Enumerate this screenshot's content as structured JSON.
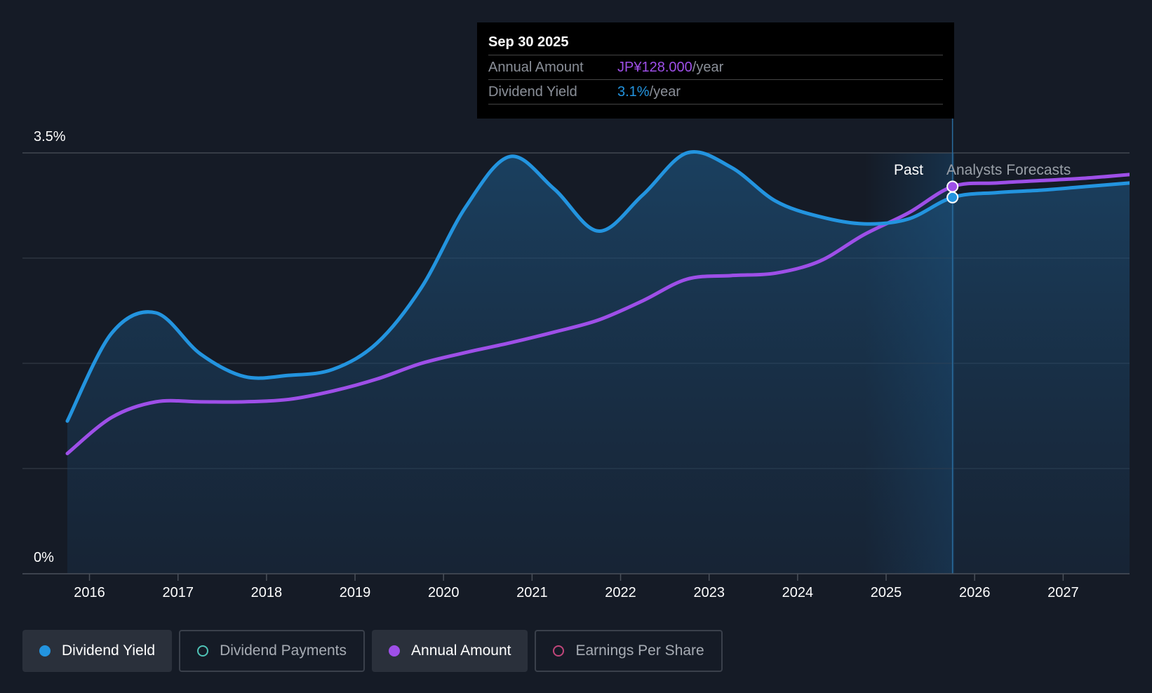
{
  "chart_data": {
    "type": "line",
    "x_axis": {
      "tick_labels": [
        "2016",
        "2017",
        "2018",
        "2019",
        "2020",
        "2021",
        "2022",
        "2023",
        "2024",
        "2025",
        "2026",
        "2027"
      ],
      "range": [
        2015.75,
        2027.75
      ]
    },
    "y_axis": {
      "tick_labels": [
        "0%",
        "3.5%"
      ],
      "range": [
        0,
        3.5
      ],
      "unit": "%"
    },
    "grid": true,
    "region_labels": {
      "past": "Past",
      "forecast": "Analysts Forecasts"
    },
    "series": [
      {
        "name": "Dividend Yield",
        "color": "#2394df",
        "area": true,
        "points": [
          [
            2015.75,
            1.27
          ],
          [
            2016.25,
            2.0
          ],
          [
            2016.75,
            2.17
          ],
          [
            2017.25,
            1.83
          ],
          [
            2017.75,
            1.64
          ],
          [
            2018.25,
            1.65
          ],
          [
            2018.75,
            1.7
          ],
          [
            2019.25,
            1.92
          ],
          [
            2019.75,
            2.38
          ],
          [
            2020.25,
            3.05
          ],
          [
            2020.75,
            3.47
          ],
          [
            2021.25,
            3.2
          ],
          [
            2021.75,
            2.85
          ],
          [
            2022.25,
            3.15
          ],
          [
            2022.75,
            3.5
          ],
          [
            2023.25,
            3.38
          ],
          [
            2023.75,
            3.1
          ],
          [
            2024.25,
            2.97
          ],
          [
            2024.75,
            2.91
          ],
          [
            2025.25,
            2.95
          ],
          [
            2025.75,
            3.13
          ],
          [
            2026.25,
            3.17
          ],
          [
            2026.75,
            3.19
          ],
          [
            2027.25,
            3.22
          ],
          [
            2027.75,
            3.25
          ]
        ]
      },
      {
        "name": "Annual Amount",
        "color": "#9e4fe8",
        "area": false,
        "points": [
          [
            2015.75,
            1.0
          ],
          [
            2016.25,
            1.3
          ],
          [
            2016.75,
            1.43
          ],
          [
            2017.25,
            1.43
          ],
          [
            2017.75,
            1.43
          ],
          [
            2018.25,
            1.45
          ],
          [
            2018.75,
            1.52
          ],
          [
            2019.25,
            1.62
          ],
          [
            2019.75,
            1.75
          ],
          [
            2020.25,
            1.84
          ],
          [
            2020.75,
            1.92
          ],
          [
            2021.25,
            2.01
          ],
          [
            2021.75,
            2.11
          ],
          [
            2022.25,
            2.27
          ],
          [
            2022.75,
            2.45
          ],
          [
            2023.25,
            2.48
          ],
          [
            2023.75,
            2.5
          ],
          [
            2024.25,
            2.6
          ],
          [
            2024.75,
            2.82
          ],
          [
            2025.25,
            3.0
          ],
          [
            2025.75,
            3.22
          ],
          [
            2026.25,
            3.25
          ],
          [
            2026.75,
            3.27
          ],
          [
            2027.25,
            3.29
          ],
          [
            2027.75,
            3.32
          ]
        ]
      }
    ],
    "highlight": {
      "x": 2025.75,
      "date_label": "Sep 30 2025"
    }
  },
  "tooltip": {
    "date": "Sep 30 2025",
    "rows": [
      {
        "label": "Annual Amount",
        "value": "JP¥128.000",
        "unit": "/year",
        "color": "#9e4fe8"
      },
      {
        "label": "Dividend Yield",
        "value": "3.1%",
        "unit": "/year",
        "color": "#2394df"
      }
    ]
  },
  "legend": [
    {
      "label": "Dividend Yield",
      "active": true,
      "color": "#2394df"
    },
    {
      "label": "Dividend Payments",
      "active": false,
      "color": "#4fc3b6"
    },
    {
      "label": "Annual Amount",
      "active": true,
      "color": "#9e4fe8"
    },
    {
      "label": "Earnings Per Share",
      "active": false,
      "color": "#c0467a"
    }
  ]
}
